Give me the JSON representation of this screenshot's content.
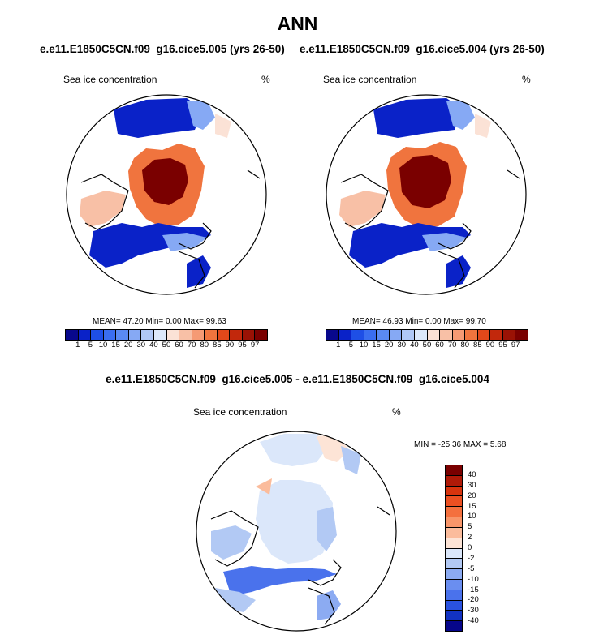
{
  "title": "ANN",
  "left_case": "e.e11.E1850C5CN.f09_g16.cice5.005 (yrs 26-50)",
  "right_case": "e.e11.E1850C5CN.f09_g16.cice5.004 (yrs 26-50)",
  "diff_title": "e.e11.E1850C5CN.f09_g16.cice5.005 - e.e11.E1850C5CN.f09_g16.cice5.004",
  "panels": [
    {
      "label": "Sea ice concentration",
      "units": "%",
      "stats": "MEAN=  47.20   Min=    0.00   Max=  99.63"
    },
    {
      "label": "Sea ice concentration",
      "units": "%",
      "stats": "MEAN=  46.93   Min=    0.00   Max=  99.70"
    },
    {
      "label": "Sea ice concentration",
      "units": "%",
      "stats": "MIN = -25.36 MAX =    5.68"
    }
  ],
  "colorbar": {
    "labels": [
      "1",
      "5",
      "10",
      "15",
      "20",
      "30",
      "40",
      "50",
      "60",
      "70",
      "80",
      "85",
      "90",
      "95",
      "97"
    ],
    "colors": [
      "#08088c",
      "#0a22c8",
      "#1e4fe6",
      "#3a6ef0",
      "#5a8af2",
      "#86a9f4",
      "#b0c8f6",
      "#dce8fa",
      "#fbe2d6",
      "#f8c0a6",
      "#f59a74",
      "#f0743e",
      "#e2481a",
      "#c2280c",
      "#9a1205",
      "#7a0000"
    ]
  },
  "diff_colorbar": {
    "labels": [
      "40",
      "30",
      "20",
      "15",
      "10",
      "5",
      "2",
      "0",
      "-2",
      "-5",
      "-10",
      "-15",
      "-20",
      "-30",
      "-40"
    ],
    "colors": [
      "#7a0000",
      "#b01a08",
      "#d8340e",
      "#ec5022",
      "#f4703e",
      "#f8966a",
      "#fbbc9c",
      "#fde4d6",
      "#dbe7fa",
      "#b2c9f4",
      "#8cabf2",
      "#6a8ef0",
      "#4a72ec",
      "#2a52e0",
      "#1232c2",
      "#06068a"
    ]
  }
}
